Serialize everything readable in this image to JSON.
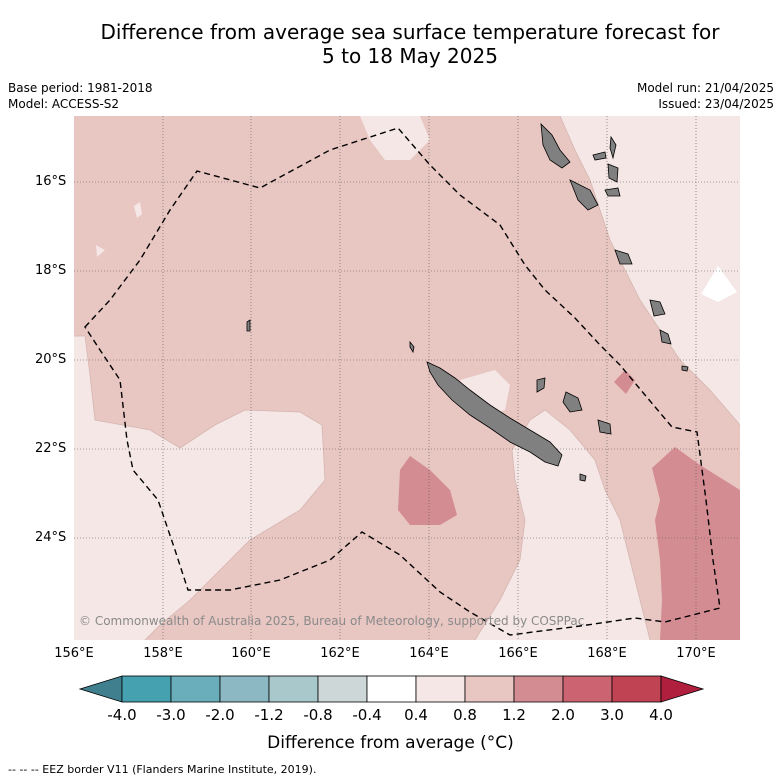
{
  "title_line1": "Difference from average sea surface temperature forecast for",
  "title_line2": "5 to 18 May 2025",
  "meta": {
    "base_period": "Base period: 1981-2018",
    "model": "Model: ACCESS-S2",
    "model_run": "Model run: 21/04/2025",
    "issued": "Issued: 23/04/2025"
  },
  "map": {
    "lon_ticks": [
      "156°E",
      "158°E",
      "160°E",
      "162°E",
      "164°E",
      "166°E",
      "168°E",
      "170°E"
    ],
    "lat_ticks": [
      "16°S",
      "18°S",
      "20°S",
      "22°S",
      "24°S"
    ],
    "copyright": "© Commonwealth of Australia 2025, Bureau of Meteorology, supported by COSPPac",
    "colors": {
      "land": "#808080",
      "class_0_4_0_8": "#f5e7e6",
      "class_0_8_1_2": "#e8c6c2",
      "class_1_2_2_0": "#d48c93"
    }
  },
  "colorbar": {
    "ticks": [
      "-4.0",
      "-3.0",
      "-2.0",
      "-1.2",
      "-0.8",
      "-0.4",
      "0.4",
      "0.8",
      "1.2",
      "2.0",
      "3.0",
      "4.0"
    ],
    "colors": [
      "#3f7f8e",
      "#45a0b0",
      "#6aaebb",
      "#8cb8c3",
      "#a9c8cc",
      "#cdd7d8",
      "#ffffff",
      "#f5e7e6",
      "#e8c6c2",
      "#d48c93",
      "#cb6470",
      "#bf4353",
      "#b01f3e"
    ],
    "label": "Difference from average (°C)"
  },
  "footer": "-- -- -- EEZ border V11 (Flanders Marine Institute, 2019)."
}
